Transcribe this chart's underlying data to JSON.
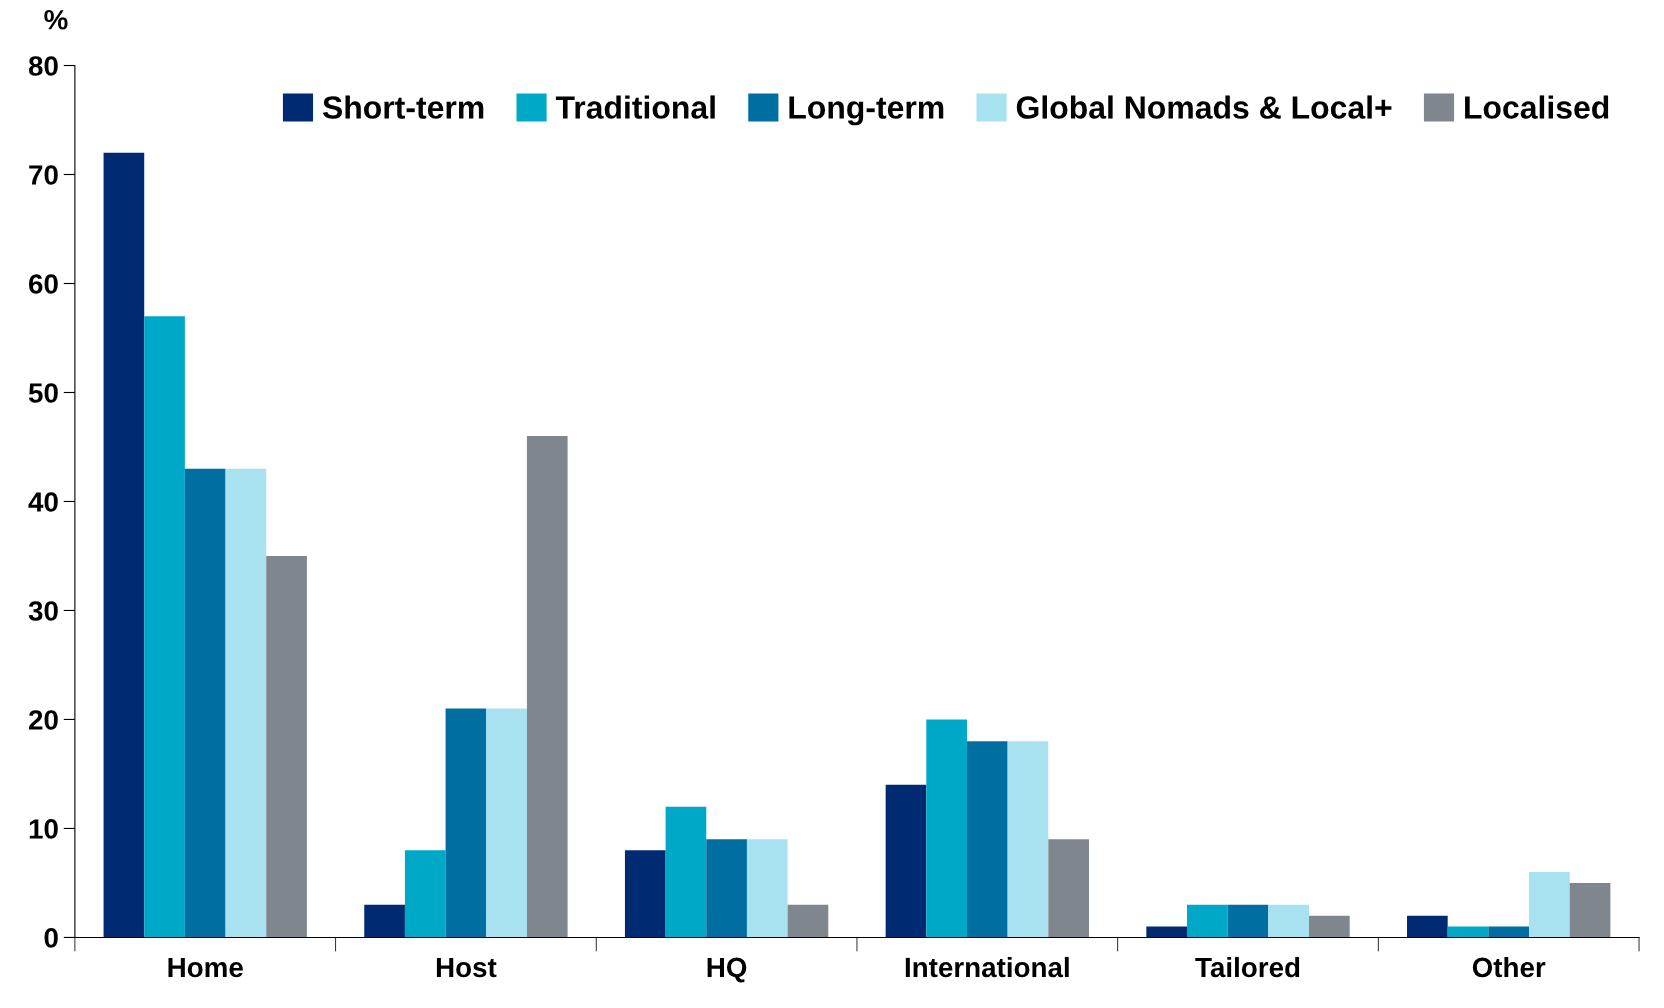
{
  "chart_data": {
    "type": "bar",
    "ylabel": "%",
    "categories": [
      "Home",
      "Host",
      "HQ",
      "International",
      "Tailored",
      "Other"
    ],
    "series": [
      {
        "name": "Short-term",
        "color": "#002b73",
        "values": [
          72,
          3,
          8,
          14,
          1,
          2
        ]
      },
      {
        "name": "Traditional",
        "color": "#00a8c8",
        "values": [
          57,
          8,
          12,
          20,
          3,
          1
        ]
      },
      {
        "name": "Long-term",
        "color": "#006ea0",
        "values": [
          43,
          21,
          9,
          18,
          3,
          1
        ]
      },
      {
        "name": "Global Nomads & Local+",
        "color": "#a8e2f0",
        "values": [
          43,
          21,
          9,
          18,
          3,
          6
        ]
      },
      {
        "name": "Localised",
        "color": "#7f868e",
        "values": [
          35,
          46,
          3,
          9,
          2,
          5
        ]
      }
    ],
    "ylim": [
      0,
      80
    ],
    "yticks": [
      0,
      10,
      20,
      30,
      40,
      50,
      60,
      70,
      80
    ],
    "grid": false,
    "legend": "top right"
  }
}
